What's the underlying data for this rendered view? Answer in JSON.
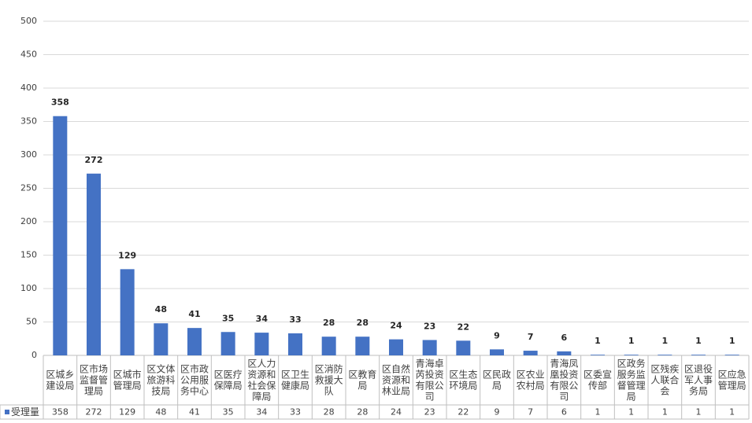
{
  "chart_data": {
    "type": "bar",
    "categories": [
      "区城乡建设局",
      "区市场监督管理局",
      "区城市管理局",
      "区文体旅游科技局",
      "区市政公用服务中心",
      "区医疗保障局",
      "区人力资源和社会保障局",
      "区卫生健康局",
      "区消防救援大队",
      "区教育局",
      "区自然资源和林业局",
      "青海卓芮投资有限公司",
      "区生态环境局",
      "区民政局",
      "区农业农村局",
      "青海凤凰投资有限公司",
      "区委宣传部",
      "区政务服务监督管理局",
      "区残疾人联合会",
      "区退役军人事务局",
      "区应急管理局"
    ],
    "series": [
      {
        "name": "受理量",
        "color": "#4472c4",
        "values": [
          358,
          272,
          129,
          48,
          41,
          35,
          34,
          33,
          28,
          28,
          24,
          23,
          22,
          9,
          7,
          6,
          1,
          1,
          1,
          1,
          1
        ]
      }
    ],
    "ylim": [
      0,
      500
    ],
    "yticks": [
      0,
      50,
      100,
      150,
      200,
      250,
      300,
      350,
      400,
      450,
      500
    ],
    "grid": true
  }
}
